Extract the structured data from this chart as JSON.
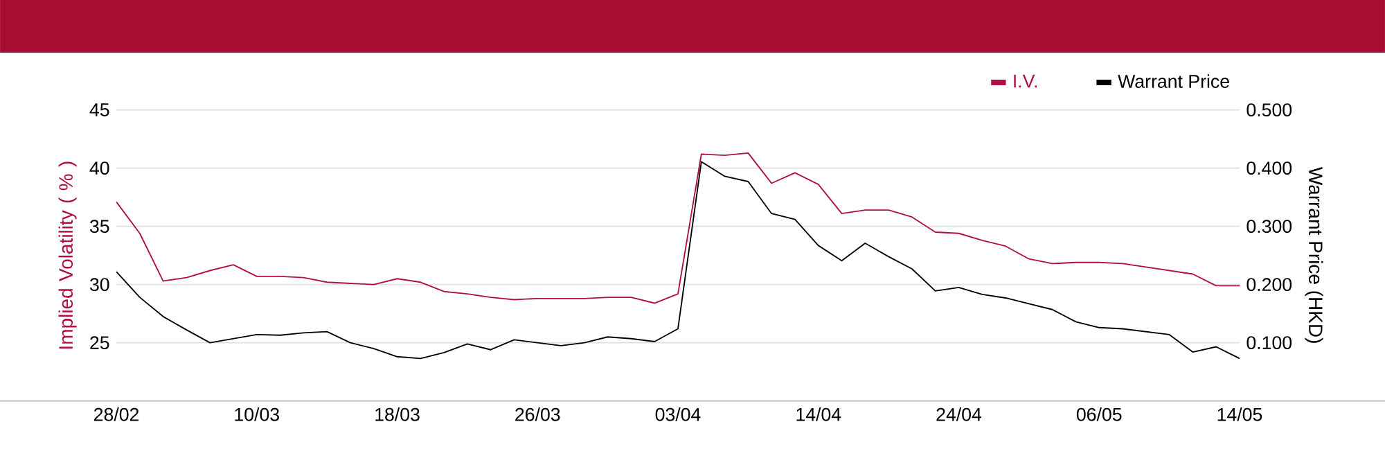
{
  "chart_data": {
    "type": "line",
    "ylabel": "Implied Volatility ( % )",
    "y2label": "Warrant Price (HKD)",
    "categories": [
      "28/02",
      null,
      null,
      null,
      null,
      null,
      "10/03",
      null,
      null,
      null,
      null,
      null,
      "18/03",
      null,
      null,
      null,
      null,
      null,
      "26/03",
      null,
      null,
      null,
      null,
      null,
      "03/04",
      null,
      null,
      null,
      null,
      null,
      "14/04",
      null,
      null,
      null,
      null,
      null,
      "24/04",
      null,
      null,
      null,
      null,
      null,
      "06/05",
      null,
      null,
      null,
      null,
      null,
      "14/05"
    ],
    "series": [
      {
        "name": "I.V.",
        "color": "#b01040",
        "values": [
          37.1,
          34.4,
          30.3,
          30.6,
          31.2,
          31.7,
          30.7,
          30.7,
          30.6,
          30.2,
          30.1,
          30.0,
          30.5,
          30.2,
          29.4,
          29.2,
          28.9,
          28.7,
          28.8,
          28.8,
          28.8,
          28.9,
          28.9,
          28.4,
          29.2,
          41.2,
          41.1,
          41.3,
          38.7,
          39.6,
          38.6,
          36.1,
          36.4,
          36.4,
          35.8,
          34.5,
          34.4,
          33.8,
          33.3,
          32.2,
          31.8,
          31.9,
          31.9,
          31.8,
          31.5,
          31.2,
          30.9,
          29.9,
          29.9
        ]
      },
      {
        "name": "Warrant Price",
        "color": "#000000",
        "axis": "y2",
        "values": [
          0.222,
          0.178,
          0.145,
          0.122,
          0.1,
          0.107,
          0.114,
          0.113,
          0.117,
          0.119,
          0.1,
          0.09,
          0.076,
          0.073,
          0.083,
          0.098,
          0.088,
          0.105,
          0.1,
          0.095,
          0.1,
          0.11,
          0.107,
          0.102,
          0.124,
          0.411,
          0.386,
          0.377,
          0.322,
          0.312,
          0.267,
          0.241,
          0.271,
          0.248,
          0.227,
          0.189,
          0.195,
          0.183,
          0.177,
          0.167,
          0.157,
          0.136,
          0.126,
          0.124,
          0.119,
          0.114,
          0.084,
          0.093,
          0.073
        ]
      }
    ],
    "ylim": [
      20,
      45
    ],
    "yticks": [
      25,
      30,
      35,
      40,
      45
    ],
    "y2lim": [
      0,
      0.5
    ],
    "y2ticks": [
      {
        "value": 0.1,
        "label": "0.100"
      },
      {
        "value": 0.2,
        "label": "0.200"
      },
      {
        "value": 0.3,
        "label": "0.300"
      },
      {
        "value": 0.4,
        "label": "0.400"
      },
      {
        "value": 0.5,
        "label": "0.500"
      }
    ],
    "grid": "y",
    "legend": "top right",
    "line_style": "solid",
    "marker": "none"
  }
}
